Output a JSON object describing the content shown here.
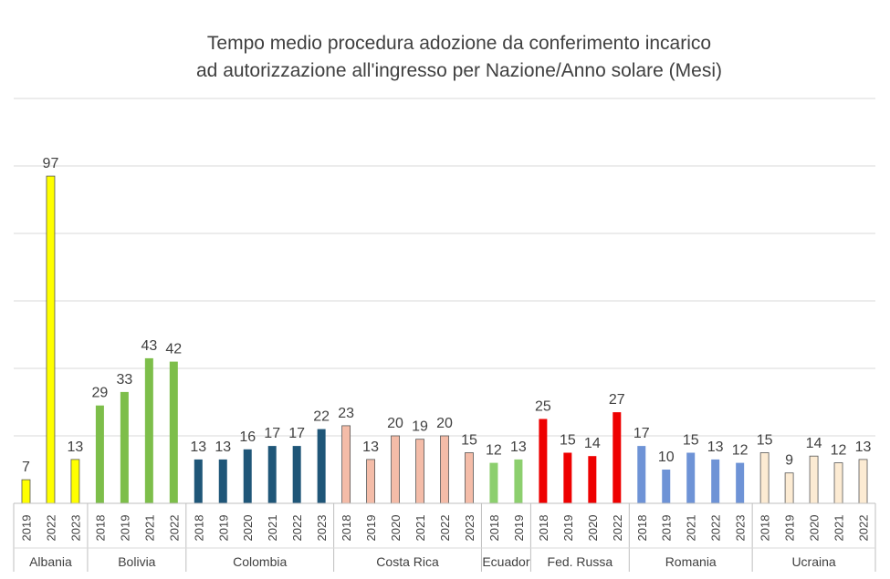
{
  "chart_data": {
    "type": "bar",
    "title": [
      "Tempo medio procedura adozione da conferimento incarico",
      "ad autorizzazione all'ingresso per Nazione/Anno solare (Mesi)"
    ],
    "ylim": [
      0,
      120
    ],
    "grid": true,
    "legend": "none",
    "groups": [
      {
        "name": "Albania",
        "color": "#FFFF00",
        "bars": [
          {
            "x": "2019",
            "value": 7
          },
          {
            "x": "2022",
            "value": 97
          },
          {
            "x": "2023",
            "value": 13
          }
        ]
      },
      {
        "name": "Bolivia",
        "color": "#7DBE4A",
        "bars": [
          {
            "x": "2018",
            "value": 29
          },
          {
            "x": "2019",
            "value": 33
          },
          {
            "x": "2021",
            "value": 43
          },
          {
            "x": "2022",
            "value": 42
          }
        ]
      },
      {
        "name": "Colombia",
        "color": "#1F5678",
        "bars": [
          {
            "x": "2018",
            "value": 13
          },
          {
            "x": "2019",
            "value": 13
          },
          {
            "x": "2020",
            "value": 16
          },
          {
            "x": "2021",
            "value": 17
          },
          {
            "x": "2022",
            "value": 17
          },
          {
            "x": "2023",
            "value": 22
          }
        ]
      },
      {
        "name": "Costa Rica",
        "color": "#F4BCA8",
        "bars": [
          {
            "x": "2018",
            "value": 23
          },
          {
            "x": "2019",
            "value": 13
          },
          {
            "x": "2020",
            "value": 20
          },
          {
            "x": "2021",
            "value": 19
          },
          {
            "x": "2022",
            "value": 20
          },
          {
            "x": "2023",
            "value": 15
          }
        ]
      },
      {
        "name": "Ecuador",
        "color": "#8CCF6E",
        "bars": [
          {
            "x": "2018",
            "value": 12
          },
          {
            "x": "2019",
            "value": 13
          }
        ]
      },
      {
        "name": "Fed. Russa",
        "color": "#EE0000",
        "bars": [
          {
            "x": "2018",
            "value": 25
          },
          {
            "x": "2019",
            "value": 15
          },
          {
            "x": "2020",
            "value": 14
          },
          {
            "x": "2022",
            "value": 27
          }
        ]
      },
      {
        "name": "Romania",
        "color": "#6E93D6",
        "bars": [
          {
            "x": "2018",
            "value": 17
          },
          {
            "x": "2019",
            "value": 10
          },
          {
            "x": "2021",
            "value": 15
          },
          {
            "x": "2022",
            "value": 13
          },
          {
            "x": "2023",
            "value": 12
          }
        ]
      },
      {
        "name": "Ucraina",
        "color": "#FCEBD3",
        "bars": [
          {
            "x": "2018",
            "value": 15
          },
          {
            "x": "2019",
            "value": 9
          },
          {
            "x": "2020",
            "value": 14
          },
          {
            "x": "2021",
            "value": 12
          },
          {
            "x": "2022",
            "value": 13
          }
        ]
      }
    ]
  }
}
